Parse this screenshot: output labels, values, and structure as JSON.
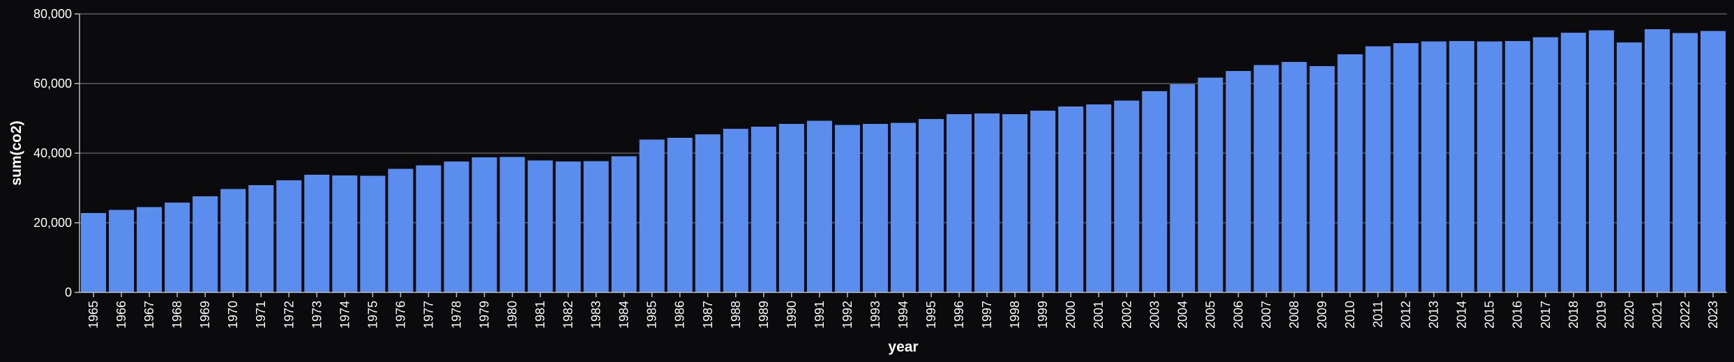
{
  "chart_data": {
    "type": "bar",
    "xlabel": "year",
    "ylabel": "sum(co2)",
    "ylim": [
      0,
      80000
    ],
    "yticks": [
      0,
      20000,
      40000,
      60000,
      80000
    ],
    "ytick_labels": [
      "0",
      "20,000",
      "40,000",
      "60,000",
      "80,000"
    ],
    "grid": true,
    "colors": {
      "bar": "#5b8def",
      "background": "#0b0b0d",
      "text": "#ffffff",
      "grid": "#8a8a8a"
    },
    "categories": [
      "1965",
      "1966",
      "1967",
      "1968",
      "1969",
      "1970",
      "1971",
      "1972",
      "1973",
      "1974",
      "1975",
      "1976",
      "1977",
      "1978",
      "1979",
      "1980",
      "1981",
      "1982",
      "1983",
      "1984",
      "1985",
      "1986",
      "1987",
      "1988",
      "1989",
      "1990",
      "1991",
      "1992",
      "1993",
      "1994",
      "1995",
      "1996",
      "1997",
      "1998",
      "1999",
      "2000",
      "2001",
      "2002",
      "2003",
      "2004",
      "2005",
      "2006",
      "2007",
      "2008",
      "2009",
      "2010",
      "2011",
      "2012",
      "2013",
      "2014",
      "2015",
      "2016",
      "2017",
      "2018",
      "2019",
      "2020",
      "2021",
      "2022",
      "2023"
    ],
    "values": [
      22800,
      23700,
      24500,
      25800,
      27600,
      29700,
      30800,
      32200,
      33800,
      33600,
      33500,
      35500,
      36500,
      37600,
      38800,
      38900,
      37900,
      37600,
      37700,
      39100,
      43900,
      44400,
      45400,
      47000,
      47600,
      48400,
      49300,
      48100,
      48400,
      48700,
      49800,
      51200,
      51400,
      51200,
      52200,
      53400,
      54000,
      55100,
      57800,
      59800,
      61700,
      63600,
      65300,
      66200,
      65000,
      68400,
      70700,
      71600,
      72100,
      72200,
      72100,
      72200,
      73300,
      74600,
      75300,
      71800,
      75600,
      74500,
      75100
    ]
  }
}
